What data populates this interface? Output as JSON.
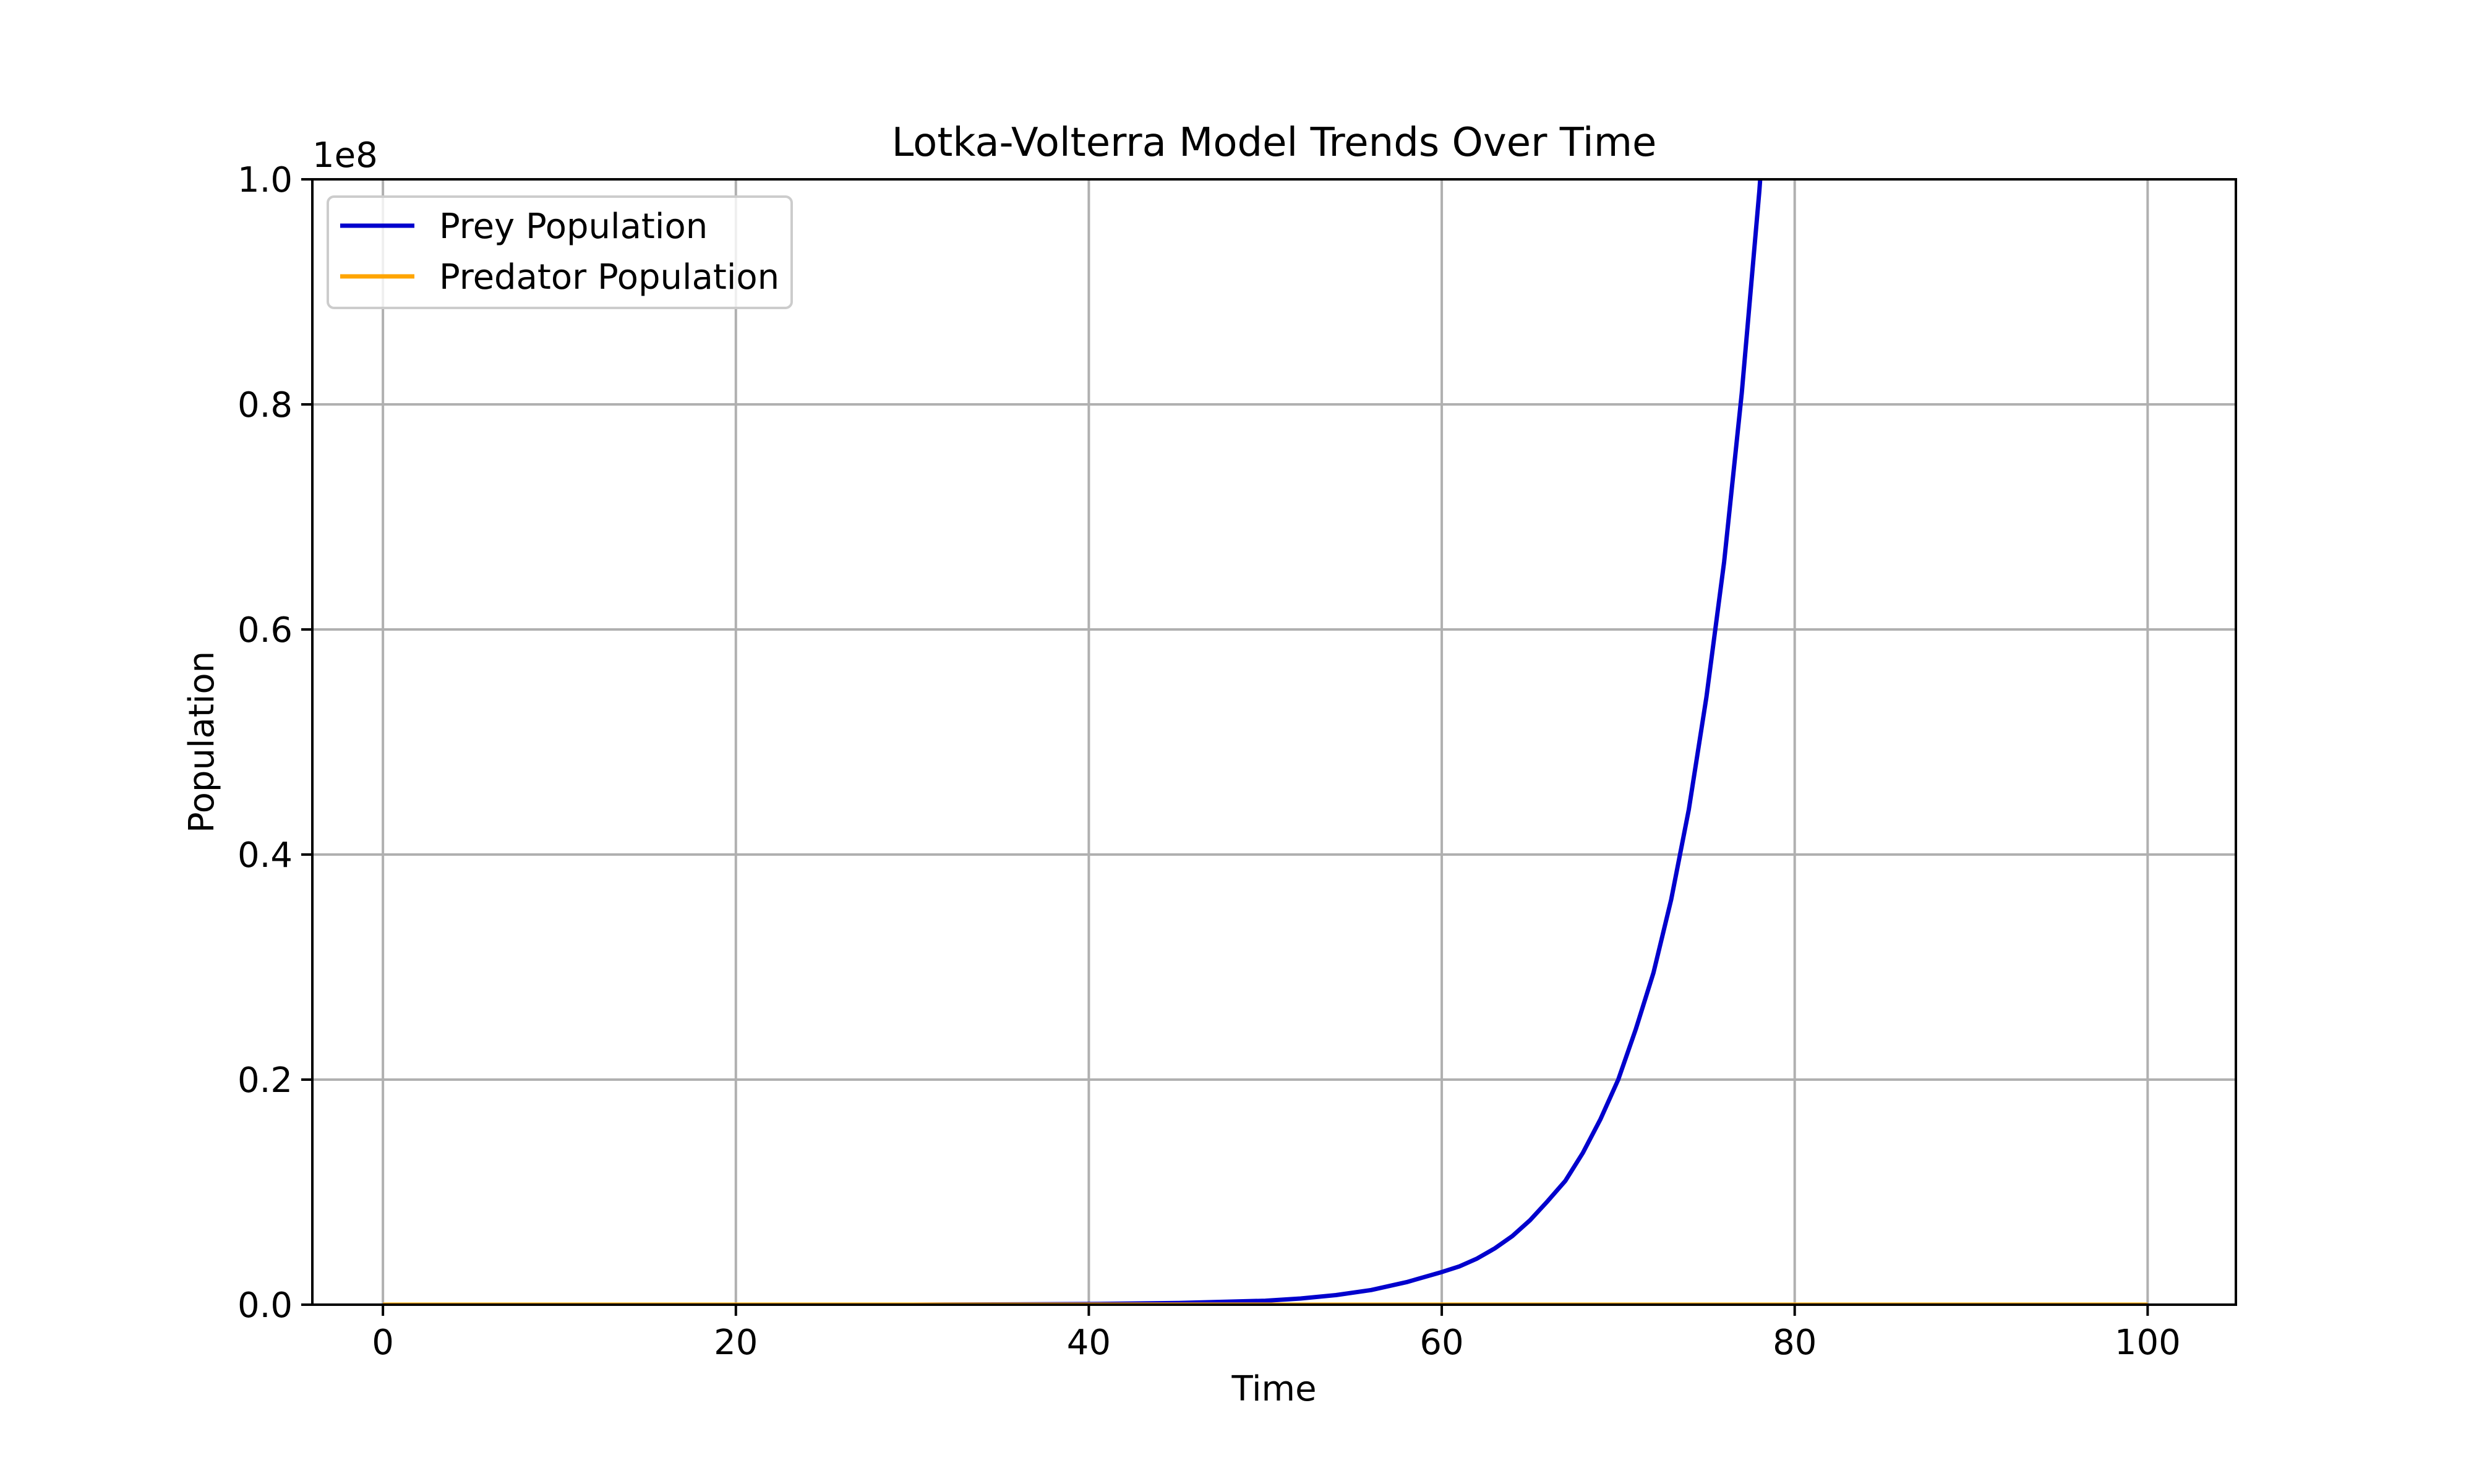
{
  "chart_data": {
    "type": "line",
    "title": "Lotka-Volterra Model Trends Over Time",
    "xlabel": "Time",
    "ylabel": "Population",
    "y_offset_label": "1e8",
    "xlim": [
      -4,
      105
    ],
    "ylim": [
      0,
      100000000
    ],
    "x_ticks": [
      0,
      20,
      40,
      60,
      80,
      100
    ],
    "x_tick_labels": [
      "0",
      "20",
      "40",
      "60",
      "80",
      "100"
    ],
    "y_ticks": [
      0,
      20000000,
      40000000,
      60000000,
      80000000,
      100000000
    ],
    "y_tick_labels": [
      "0.0",
      "0.2",
      "0.4",
      "0.6",
      "0.8",
      "1.0"
    ],
    "grid": true,
    "legend_position": "top-left",
    "series": [
      {
        "name": "Prey Population",
        "color": "#0000cd",
        "x": [
          0,
          10,
          20,
          30,
          40,
          45,
          50,
          52,
          54,
          56,
          58,
          60,
          61,
          62,
          63,
          64,
          65,
          66,
          67,
          68,
          69,
          70,
          71,
          72,
          73,
          74,
          75,
          76,
          77,
          78,
          79
        ],
        "y": [
          0,
          0,
          0,
          0,
          60000,
          150000,
          350000,
          550000,
          850000,
          1300000,
          2000000,
          2900000,
          3400000,
          4100000,
          5000000,
          6100000,
          7500000,
          9200000,
          11000000,
          13500000,
          16500000,
          20000000,
          24500000,
          29500000,
          36000000,
          44000000,
          54000000,
          66000000,
          81000000,
          99000000,
          121000000
        ]
      },
      {
        "name": "Predator Population",
        "color": "#ffa500",
        "x": [
          0,
          20,
          40,
          60,
          80,
          100
        ],
        "y": [
          0,
          0,
          0,
          0,
          0,
          0
        ]
      }
    ]
  }
}
